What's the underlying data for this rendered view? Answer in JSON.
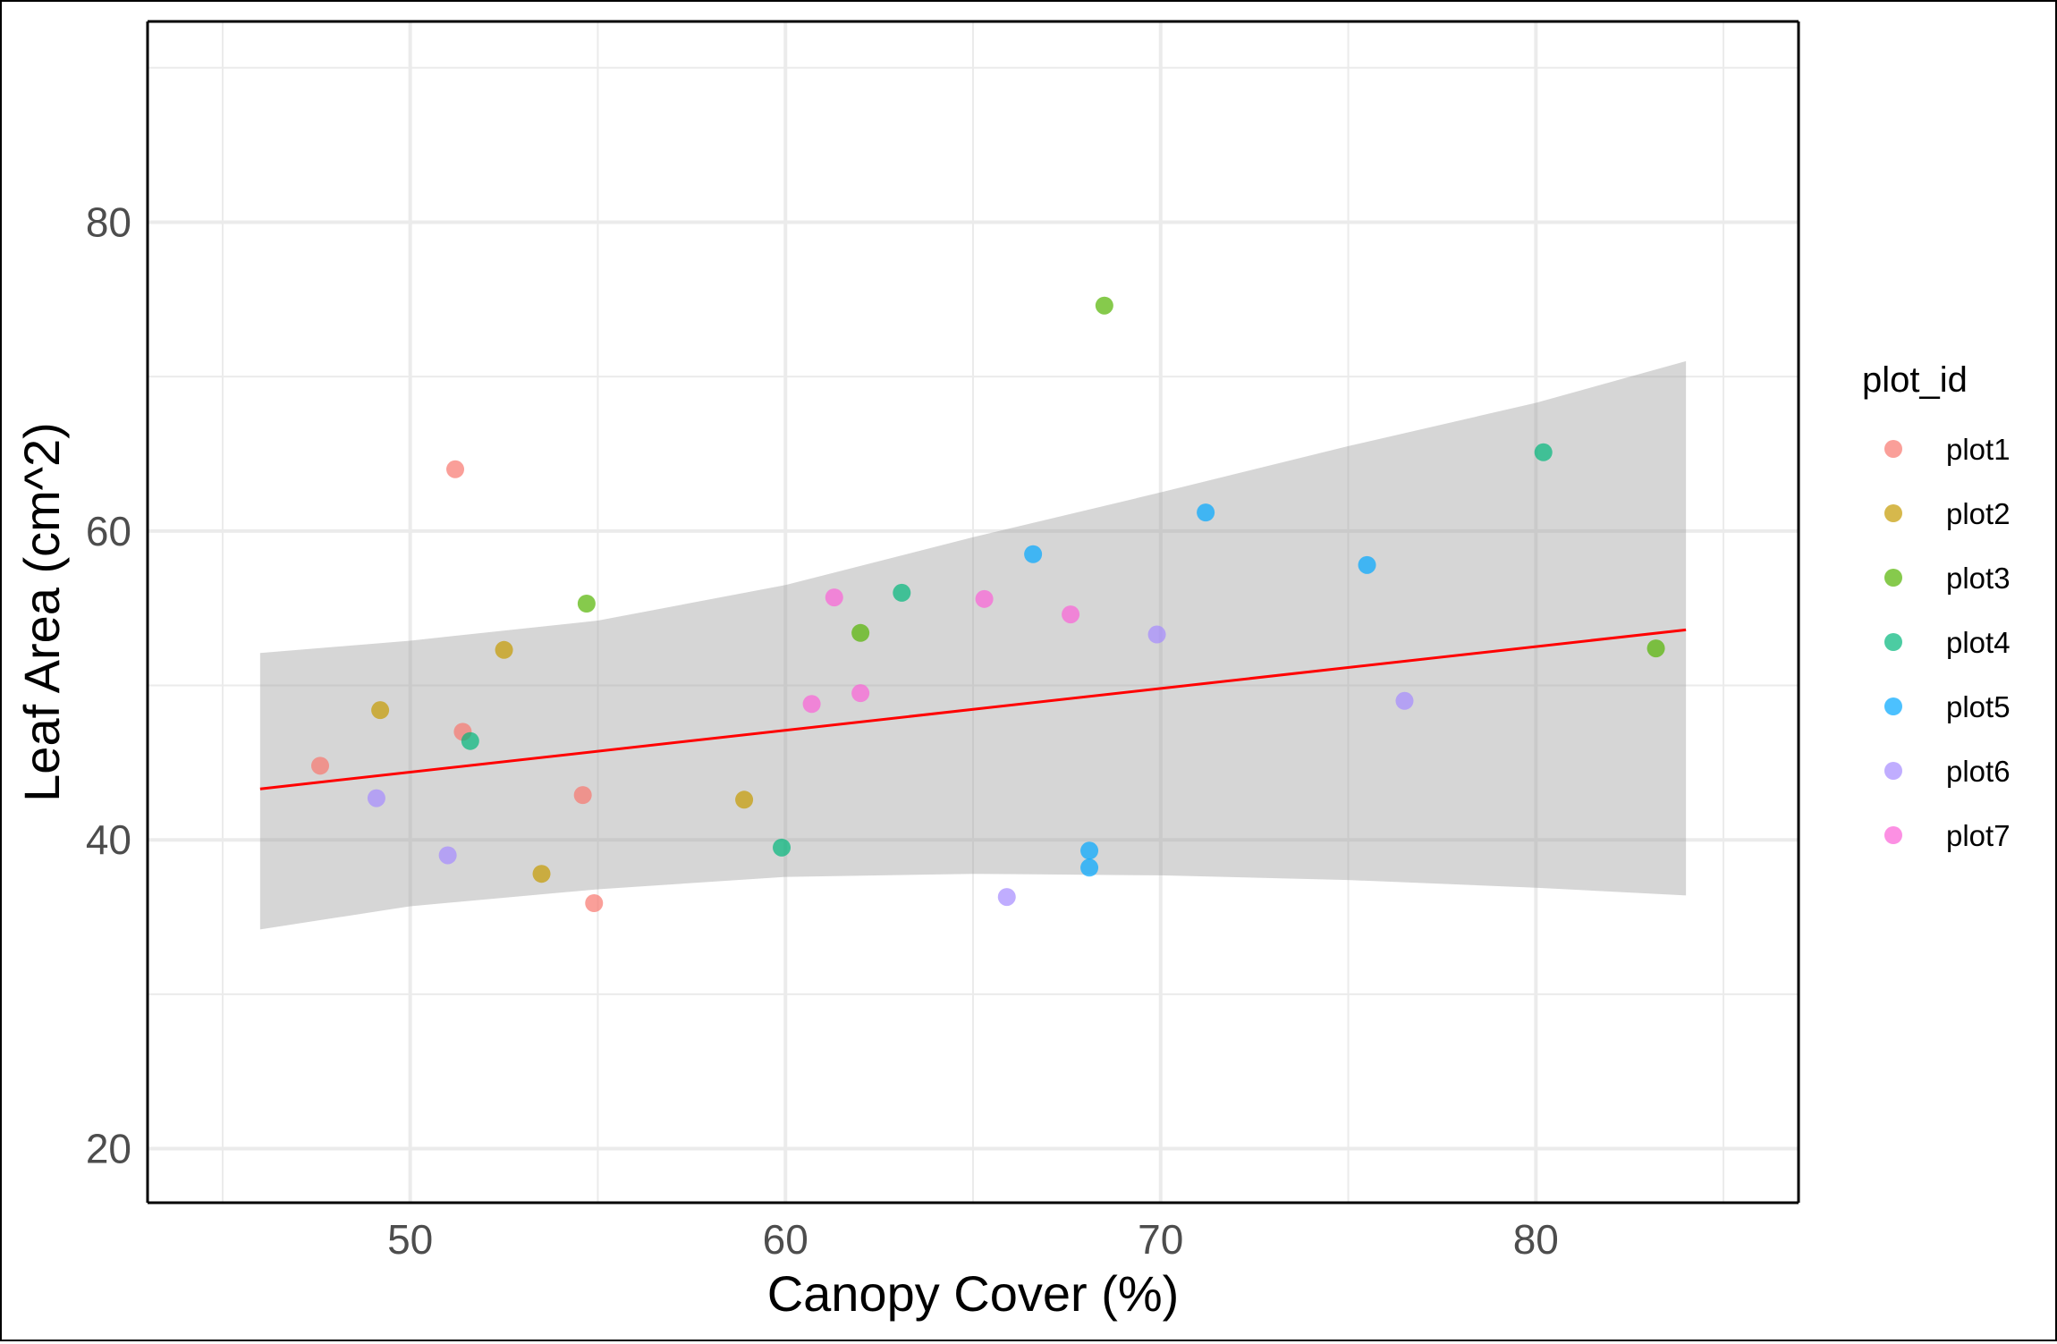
{
  "chart_data": {
    "type": "scatter",
    "xlabel": "Canopy Cover (%)",
    "ylabel": "Leaf Area (cm^2)",
    "xlim": [
      43,
      87
    ],
    "ylim": [
      16.5,
      93
    ],
    "x_ticks": [
      50,
      60,
      70,
      80
    ],
    "y_ticks": [
      20,
      40,
      60,
      80
    ],
    "grid": true,
    "legend_title": "plot_id",
    "legend_position": "right",
    "series": [
      {
        "name": "plot1",
        "color": "#F8766D",
        "points": [
          [
            47.6,
            44.8
          ],
          [
            51.2,
            64.0
          ],
          [
            51.4,
            47.0
          ],
          [
            54.6,
            42.9
          ],
          [
            54.9,
            35.9
          ]
        ]
      },
      {
        "name": "plot2",
        "color": "#C49A00",
        "points": [
          [
            49.2,
            48.4
          ],
          [
            52.5,
            52.3
          ],
          [
            53.5,
            37.8
          ],
          [
            58.9,
            42.6
          ]
        ]
      },
      {
        "name": "plot3",
        "color": "#53B400",
        "points": [
          [
            54.7,
            55.3
          ],
          [
            62.0,
            53.4
          ],
          [
            68.5,
            74.6
          ],
          [
            83.2,
            52.4
          ]
        ]
      },
      {
        "name": "plot4",
        "color": "#00B67A",
        "points": [
          [
            51.6,
            46.4
          ],
          [
            59.9,
            39.5
          ],
          [
            63.1,
            56.0
          ],
          [
            80.2,
            65.1
          ]
        ]
      },
      {
        "name": "plot5",
        "color": "#00A6FF",
        "points": [
          [
            66.6,
            58.5
          ],
          [
            68.1,
            39.3
          ],
          [
            68.1,
            38.2
          ],
          [
            71.2,
            61.2
          ],
          [
            75.5,
            57.8
          ]
        ]
      },
      {
        "name": "plot6",
        "color": "#A58AFF",
        "points": [
          [
            49.1,
            42.7
          ],
          [
            51.0,
            39.0
          ],
          [
            65.9,
            36.3
          ],
          [
            69.9,
            53.3
          ],
          [
            76.5,
            49.0
          ]
        ]
      },
      {
        "name": "plot7",
        "color": "#FB61D7",
        "points": [
          [
            60.7,
            48.8
          ],
          [
            61.3,
            55.7
          ],
          [
            62.0,
            49.5
          ],
          [
            65.3,
            55.6
          ],
          [
            67.6,
            54.6
          ]
        ]
      }
    ],
    "trend": {
      "color": "#FF0000",
      "x": [
        46.0,
        84.0
      ],
      "fit": [
        43.3,
        53.6
      ],
      "ci_band": {
        "x": [
          46,
          50,
          55,
          60,
          65,
          70,
          75,
          80,
          84
        ],
        "lower": [
          34.2,
          35.7,
          36.8,
          37.6,
          37.8,
          37.7,
          37.4,
          36.9,
          36.4
        ],
        "upper": [
          52.1,
          52.9,
          54.2,
          56.5,
          59.6,
          62.5,
          65.5,
          68.3,
          71.0
        ]
      }
    }
  }
}
